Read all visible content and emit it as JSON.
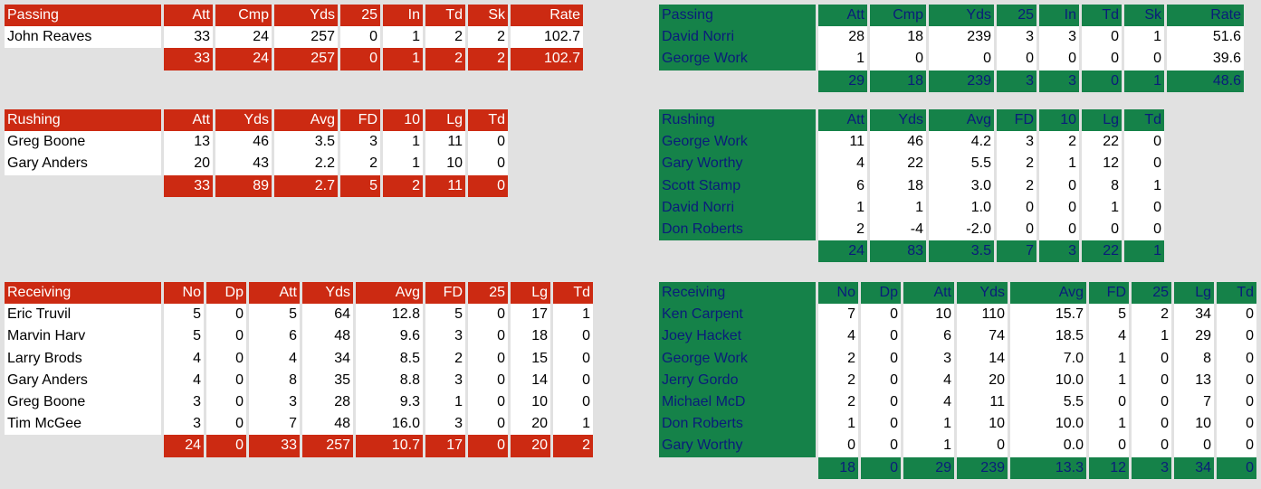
{
  "colors": {
    "home": "#cc2a12",
    "away": "#158249",
    "away_text": "#0a1c7a",
    "background": "#e1e1e1"
  },
  "left": {
    "passing": {
      "header": [
        "Passing",
        "Att",
        "Cmp",
        "Yds",
        "25",
        "In",
        "Td",
        "Sk",
        "Rate"
      ],
      "rows": [
        [
          "John Reaves",
          "33",
          "24",
          "257",
          "0",
          "1",
          "2",
          "2",
          "102.7"
        ]
      ],
      "totals": [
        "33",
        "24",
        "257",
        "0",
        "1",
        "2",
        "2",
        "102.7"
      ]
    },
    "rushing": {
      "header": [
        "Rushing",
        "Att",
        "Yds",
        "Avg",
        "FD",
        "10",
        "Lg",
        "Td"
      ],
      "rows": [
        [
          "Greg Boone",
          "13",
          "46",
          "3.5",
          "3",
          "1",
          "11",
          "0"
        ],
        [
          "Gary Anders",
          "20",
          "43",
          "2.2",
          "2",
          "1",
          "10",
          "0"
        ]
      ],
      "totals": [
        "33",
        "89",
        "2.7",
        "5",
        "2",
        "11",
        "0"
      ]
    },
    "receiving": {
      "header": [
        "Receiving",
        "No",
        "Dp",
        "Att",
        "Yds",
        "Avg",
        "FD",
        "25",
        "Lg",
        "Td"
      ],
      "rows": [
        [
          "Eric Truvil",
          "5",
          "0",
          "5",
          "64",
          "12.8",
          "5",
          "0",
          "17",
          "1"
        ],
        [
          "Marvin Harv",
          "5",
          "0",
          "6",
          "48",
          "9.6",
          "3",
          "0",
          "18",
          "0"
        ],
        [
          "Larry Brods",
          "4",
          "0",
          "4",
          "34",
          "8.5",
          "2",
          "0",
          "15",
          "0"
        ],
        [
          "Gary Anders",
          "4",
          "0",
          "8",
          "35",
          "8.8",
          "3",
          "0",
          "14",
          "0"
        ],
        [
          "Greg Boone",
          "3",
          "0",
          "3",
          "28",
          "9.3",
          "1",
          "0",
          "10",
          "0"
        ],
        [
          "Tim McGee",
          "3",
          "0",
          "7",
          "48",
          "16.0",
          "3",
          "0",
          "20",
          "1"
        ]
      ],
      "totals": [
        "24",
        "0",
        "33",
        "257",
        "10.7",
        "17",
        "0",
        "20",
        "2"
      ]
    }
  },
  "right": {
    "passing": {
      "header": [
        "Passing",
        "Att",
        "Cmp",
        "Yds",
        "25",
        "In",
        "Td",
        "Sk",
        "Rate"
      ],
      "rows": [
        [
          "David Norri",
          "28",
          "18",
          "239",
          "3",
          "3",
          "0",
          "1",
          "51.6"
        ],
        [
          "George Work",
          "1",
          "0",
          "0",
          "0",
          "0",
          "0",
          "0",
          "39.6"
        ]
      ],
      "totals": [
        "29",
        "18",
        "239",
        "3",
        "3",
        "0",
        "1",
        "48.6"
      ]
    },
    "rushing": {
      "header": [
        "Rushing",
        "Att",
        "Yds",
        "Avg",
        "FD",
        "10",
        "Lg",
        "Td"
      ],
      "rows": [
        [
          "George Work",
          "11",
          "46",
          "4.2",
          "3",
          "2",
          "22",
          "0"
        ],
        [
          "Gary Worthy",
          "4",
          "22",
          "5.5",
          "2",
          "1",
          "12",
          "0"
        ],
        [
          "Scott Stamp",
          "6",
          "18",
          "3.0",
          "2",
          "0",
          "8",
          "1"
        ],
        [
          "David Norri",
          "1",
          "1",
          "1.0",
          "0",
          "0",
          "1",
          "0"
        ],
        [
          "Don Roberts",
          "2",
          "-4",
          "-2.0",
          "0",
          "0",
          "0",
          "0"
        ]
      ],
      "totals": [
        "24",
        "83",
        "3.5",
        "7",
        "3",
        "22",
        "1"
      ]
    },
    "receiving": {
      "header": [
        "Receiving",
        "No",
        "Dp",
        "Att",
        "Yds",
        "Avg",
        "FD",
        "25",
        "Lg",
        "Td"
      ],
      "rows": [
        [
          "Ken Carpent",
          "7",
          "0",
          "10",
          "110",
          "15.7",
          "5",
          "2",
          "34",
          "0"
        ],
        [
          "Joey Hacket",
          "4",
          "0",
          "6",
          "74",
          "18.5",
          "4",
          "1",
          "29",
          "0"
        ],
        [
          "George Work",
          "2",
          "0",
          "3",
          "14",
          "7.0",
          "1",
          "0",
          "8",
          "0"
        ],
        [
          "Jerry Gordo",
          "2",
          "0",
          "4",
          "20",
          "10.0",
          "1",
          "0",
          "13",
          "0"
        ],
        [
          "Michael McD",
          "2",
          "0",
          "4",
          "11",
          "5.5",
          "0",
          "0",
          "7",
          "0"
        ],
        [
          "Don Roberts",
          "1",
          "0",
          "1",
          "10",
          "10.0",
          "1",
          "0",
          "10",
          "0"
        ],
        [
          "Gary Worthy",
          "0",
          "0",
          "1",
          "0",
          "0.0",
          "0",
          "0",
          "0",
          "0"
        ]
      ],
      "totals": [
        "18",
        "0",
        "29",
        "239",
        "13.3",
        "12",
        "3",
        "34",
        "0"
      ]
    }
  }
}
